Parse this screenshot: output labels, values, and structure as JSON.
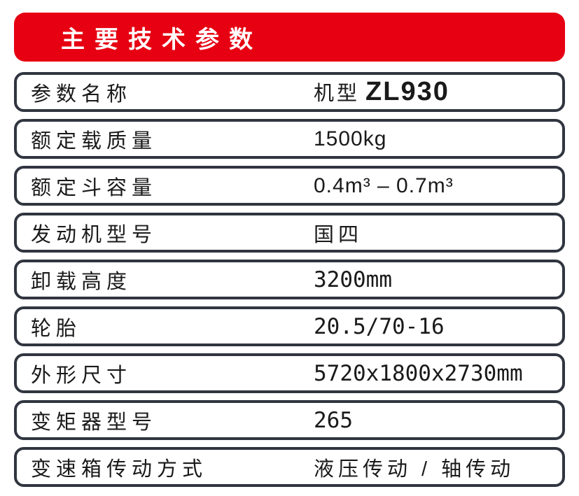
{
  "header": {
    "title": "主要技术参数",
    "background_color": "#e60012",
    "text_color": "#ffffff"
  },
  "table": {
    "border_color": "#303540",
    "rows": [
      {
        "label": "参数名称",
        "value_prefix": "机型",
        "value_model": "ZL930"
      },
      {
        "label": "额定载质量",
        "value": "1500kg"
      },
      {
        "label": "额定斗容量",
        "value": "0.4m³ – 0.7m³"
      },
      {
        "label": "发动机型号",
        "value": "国四"
      },
      {
        "label": "卸载高度",
        "value": "3200mm"
      },
      {
        "label": "轮胎",
        "value": "20.5/70-16"
      },
      {
        "label": "外形尺寸",
        "value": "5720x1800x2730mm"
      },
      {
        "label": "变矩器型号",
        "value": "265"
      },
      {
        "label": "变速箱传动方式",
        "value": "液压传动 / 轴传动"
      }
    ]
  }
}
